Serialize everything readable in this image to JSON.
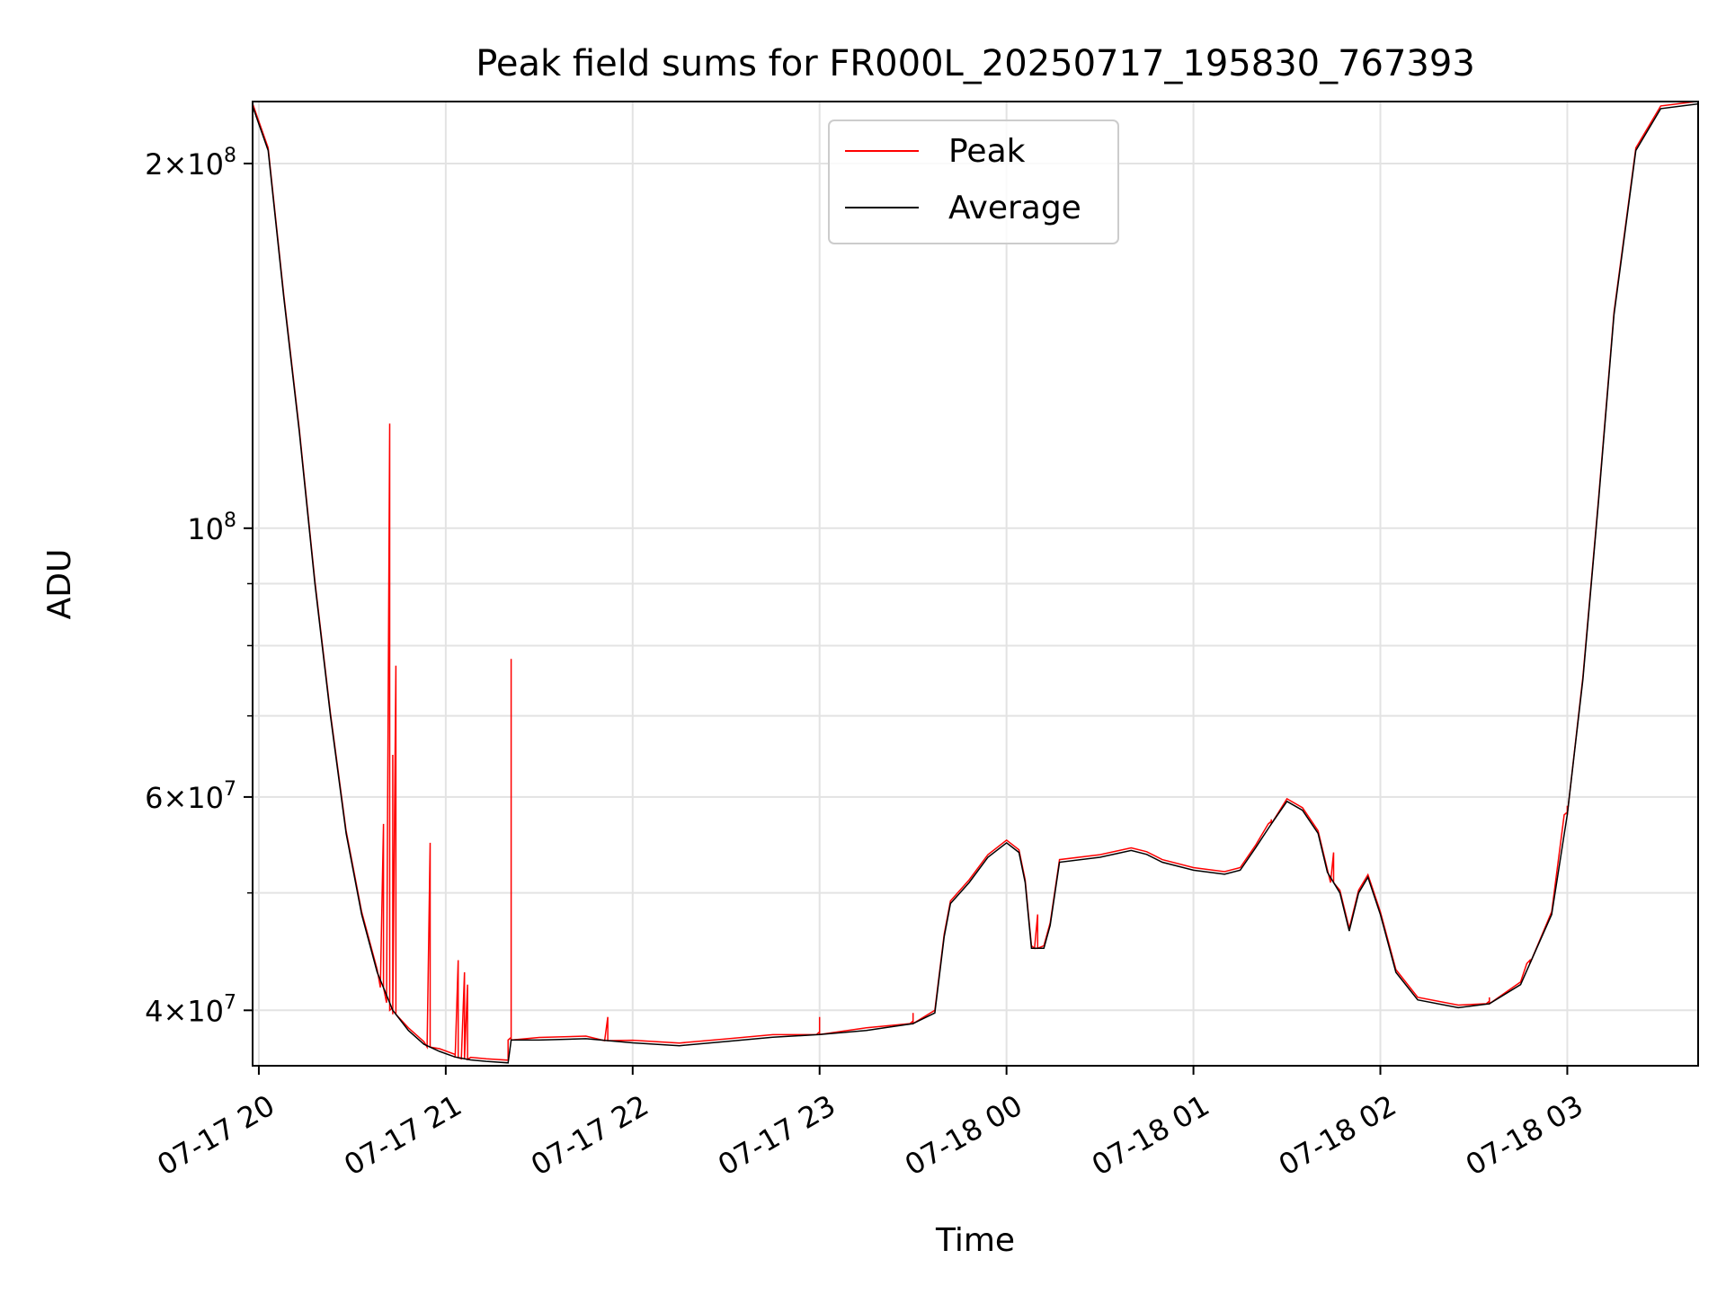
{
  "chart_data": {
    "type": "line",
    "title": "Peak field sums for FR000L_20250717_195830_767393",
    "xlabel": "Time",
    "ylabel": "ADU",
    "y_scale": "log",
    "ylim": [
      36000000,
      225000000
    ],
    "xlim": [
      "2025-07-17 19:58",
      "2025-07-18 03:42"
    ],
    "grid": true,
    "legend_position": "upper center",
    "x_ticks": [
      {
        "t": "2025-07-17 20:00",
        "label": "07-17 20"
      },
      {
        "t": "2025-07-17 21:00",
        "label": "07-17 21"
      },
      {
        "t": "2025-07-17 22:00",
        "label": "07-17 22"
      },
      {
        "t": "2025-07-17 23:00",
        "label": "07-17 23"
      },
      {
        "t": "2025-07-18 00:00",
        "label": "07-18 00"
      },
      {
        "t": "2025-07-18 01:00",
        "label": "07-18 01"
      },
      {
        "t": "2025-07-18 02:00",
        "label": "07-18 02"
      },
      {
        "t": "2025-07-18 03:00",
        "label": "07-18 03"
      }
    ],
    "y_ticks": [
      {
        "value": 40000000,
        "mant": "4",
        "exp": "7"
      },
      {
        "value": 60000000,
        "mant": "6",
        "exp": "7"
      },
      {
        "value": 100000000,
        "mant": "",
        "exp": "8"
      },
      {
        "value": 200000000,
        "mant": "2",
        "exp": "8"
      }
    ],
    "y_minor_ticks": [
      50000000,
      70000000,
      80000000,
      90000000
    ],
    "series": [
      {
        "name": "Average",
        "color": "#000000",
        "points": [
          [
            "2025-07-17 19:58",
            223000000.0
          ],
          [
            "2025-07-17 20:03",
            205000000.0
          ],
          [
            "2025-07-17 20:08",
            155000000.0
          ],
          [
            "2025-07-17 20:13",
            120000000.0
          ],
          [
            "2025-07-17 20:18",
            90000000.0
          ],
          [
            "2025-07-17 20:23",
            70000000.0
          ],
          [
            "2025-07-17 20:28",
            56000000.0
          ],
          [
            "2025-07-17 20:33",
            48000000.0
          ],
          [
            "2025-07-17 20:38",
            43000000.0
          ],
          [
            "2025-07-17 20:43",
            40000000.0
          ],
          [
            "2025-07-17 20:48",
            38500000.0
          ],
          [
            "2025-07-17 20:53",
            37500000.0
          ],
          [
            "2025-07-17 20:58",
            37000000.0
          ],
          [
            "2025-07-17 21:03",
            36600000.0
          ],
          [
            "2025-07-17 21:08",
            36400000.0
          ],
          [
            "2025-07-17 21:13",
            36300000.0
          ],
          [
            "2025-07-17 21:20",
            36200000.0
          ],
          [
            "2025-07-17 21:21",
            37800000.0
          ],
          [
            "2025-07-17 21:30",
            37800000.0
          ],
          [
            "2025-07-17 21:45",
            37900000.0
          ],
          [
            "2025-07-17 22:00",
            37600000.0
          ],
          [
            "2025-07-17 22:15",
            37400000.0
          ],
          [
            "2025-07-17 22:30",
            37700000.0
          ],
          [
            "2025-07-17 22:45",
            38000000.0
          ],
          [
            "2025-07-17 23:00",
            38200000.0
          ],
          [
            "2025-07-17 23:15",
            38500000.0
          ],
          [
            "2025-07-17 23:30",
            39000000.0
          ],
          [
            "2025-07-17 23:37",
            39800000.0
          ],
          [
            "2025-07-17 23:40",
            46000000.0
          ],
          [
            "2025-07-17 23:42",
            49000000.0
          ],
          [
            "2025-07-17 23:48",
            51000000.0
          ],
          [
            "2025-07-17 23:54",
            53500000.0
          ],
          [
            "2025-07-18 00:00",
            55000000.0
          ],
          [
            "2025-07-18 00:04",
            54000000.0
          ],
          [
            "2025-07-18 00:06",
            51000000.0
          ],
          [
            "2025-07-18 00:08",
            45000000.0
          ],
          [
            "2025-07-18 00:12",
            45000000.0
          ],
          [
            "2025-07-18 00:14",
            47000000.0
          ],
          [
            "2025-07-18 00:17",
            53000000.0
          ],
          [
            "2025-07-18 00:30",
            53500000.0
          ],
          [
            "2025-07-18 00:40",
            54200000.0
          ],
          [
            "2025-07-18 00:45",
            53800000.0
          ],
          [
            "2025-07-18 00:50",
            53000000.0
          ],
          [
            "2025-07-18 01:00",
            52200000.0
          ],
          [
            "2025-07-18 01:10",
            51800000.0
          ],
          [
            "2025-07-18 01:15",
            52200000.0
          ],
          [
            "2025-07-18 01:20",
            54500000.0
          ],
          [
            "2025-07-18 01:25",
            57000000.0
          ],
          [
            "2025-07-18 01:30",
            59500000.0
          ],
          [
            "2025-07-18 01:35",
            58500000.0
          ],
          [
            "2025-07-18 01:40",
            56000000.0
          ],
          [
            "2025-07-18 01:43",
            52000000.0
          ],
          [
            "2025-07-18 01:47",
            50000000.0
          ],
          [
            "2025-07-18 01:50",
            46500000.0
          ],
          [
            "2025-07-18 01:53",
            50000000.0
          ],
          [
            "2025-07-18 01:56",
            51500000.0
          ],
          [
            "2025-07-18 02:00",
            48000000.0
          ],
          [
            "2025-07-18 02:05",
            43000000.0
          ],
          [
            "2025-07-18 02:12",
            40800000.0
          ],
          [
            "2025-07-18 02:25",
            40200000.0
          ],
          [
            "2025-07-18 02:35",
            40500000.0
          ],
          [
            "2025-07-18 02:45",
            42000000.0
          ],
          [
            "2025-07-18 02:55",
            48000000.0
          ],
          [
            "2025-07-18 03:00",
            58000000.0
          ],
          [
            "2025-07-18 03:05",
            75000000.0
          ],
          [
            "2025-07-18 03:10",
            105000000.0
          ],
          [
            "2025-07-18 03:15",
            150000000.0
          ],
          [
            "2025-07-18 03:22",
            205000000.0
          ],
          [
            "2025-07-18 03:30",
            222000000.0
          ],
          [
            "2025-07-18 03:42",
            224000000.0
          ]
        ]
      },
      {
        "name": "Peak",
        "color": "#ff0000",
        "spikes": [
          [
            "2025-07-17 20:40",
            57000000.0
          ],
          [
            "2025-07-17 20:42",
            122000000.0
          ],
          [
            "2025-07-17 20:43",
            65000000.0
          ],
          [
            "2025-07-17 20:44",
            77000000.0
          ],
          [
            "2025-07-17 20:55",
            55000000.0
          ],
          [
            "2025-07-17 21:04",
            44000000.0
          ],
          [
            "2025-07-17 21:06",
            43000000.0
          ],
          [
            "2025-07-17 21:07",
            42000000.0
          ],
          [
            "2025-07-17 21:21",
            78000000.0
          ],
          [
            "2025-07-17 21:52",
            39500000.0
          ],
          [
            "2025-07-17 23:00",
            39500000.0
          ],
          [
            "2025-07-17 23:30",
            39800000.0
          ],
          [
            "2025-07-18 00:10",
            48000000.0
          ],
          [
            "2025-07-18 01:25",
            57500000.0
          ],
          [
            "2025-07-18 01:45",
            54000000.0
          ],
          [
            "2025-07-18 02:35",
            41000000.0
          ],
          [
            "2025-07-18 02:48",
            44000000.0
          ],
          [
            "2025-07-18 03:00",
            59000000.0
          ]
        ]
      }
    ],
    "legend": [
      {
        "label": "Peak",
        "color": "#ff0000"
      },
      {
        "label": "Average",
        "color": "#000000"
      }
    ]
  }
}
